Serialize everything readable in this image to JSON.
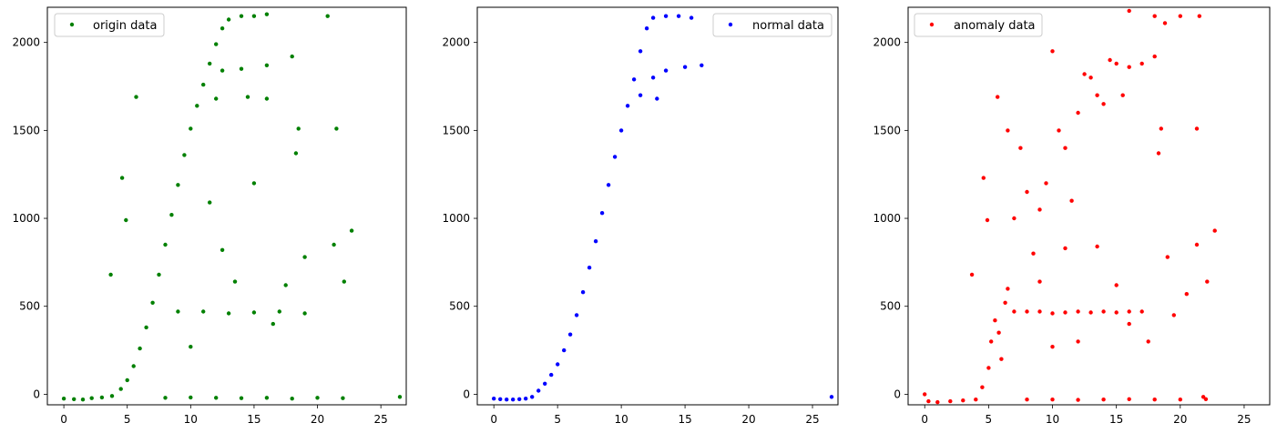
{
  "chart_data": [
    {
      "type": "scatter",
      "title": "",
      "xlabel": "",
      "ylabel": "",
      "xlim": [
        -1.3,
        27.0
      ],
      "ylim": [
        -60,
        2200
      ],
      "xticks": [
        0,
        5,
        10,
        15,
        20,
        25
      ],
      "yticks": [
        0,
        500,
        1000,
        1500,
        2000
      ],
      "grid": false,
      "legend_position": "top-left",
      "series": [
        {
          "name": "origin data",
          "color": "#008000",
          "points": [
            [
              0.0,
              -25
            ],
            [
              0.8,
              -28
            ],
            [
              1.5,
              -30
            ],
            [
              2.2,
              -22
            ],
            [
              3.0,
              -18
            ],
            [
              3.8,
              -10
            ],
            [
              4.5,
              30
            ],
            [
              5.0,
              80
            ],
            [
              5.5,
              160
            ],
            [
              6.0,
              260
            ],
            [
              6.5,
              380
            ],
            [
              7.0,
              520
            ],
            [
              7.5,
              680
            ],
            [
              8.0,
              850
            ],
            [
              8.5,
              1020
            ],
            [
              9.0,
              1190
            ],
            [
              9.5,
              1360
            ],
            [
              10.0,
              1510
            ],
            [
              10.5,
              1640
            ],
            [
              11.0,
              1760
            ],
            [
              11.5,
              1880
            ],
            [
              12.0,
              1990
            ],
            [
              12.5,
              2080
            ],
            [
              13.0,
              2130
            ],
            [
              14.0,
              2150
            ],
            [
              15.0,
              2150
            ],
            [
              16.0,
              2160
            ],
            [
              12.5,
              1840
            ],
            [
              14.0,
              1850
            ],
            [
              16.0,
              1870
            ],
            [
              18.0,
              1920
            ],
            [
              12.0,
              1680
            ],
            [
              14.5,
              1690
            ],
            [
              16.0,
              1680
            ],
            [
              9.0,
              470
            ],
            [
              11.0,
              470
            ],
            [
              13.0,
              460
            ],
            [
              15.0,
              465
            ],
            [
              17.0,
              470
            ],
            [
              19.0,
              460
            ],
            [
              8.0,
              -20
            ],
            [
              10.0,
              -18
            ],
            [
              12.0,
              -20
            ],
            [
              14.0,
              -22
            ],
            [
              16.0,
              -20
            ],
            [
              18.0,
              -25
            ],
            [
              20.0,
              -20
            ],
            [
              22.0,
              -22
            ],
            [
              26.5,
              -15
            ],
            [
              4.6,
              1230
            ],
            [
              5.7,
              1690
            ],
            [
              3.7,
              680
            ],
            [
              4.9,
              990
            ],
            [
              21.5,
              1510
            ],
            [
              22.7,
              930
            ],
            [
              22.1,
              640
            ],
            [
              21.3,
              850
            ],
            [
              20.8,
              2150
            ],
            [
              18.5,
              1510
            ],
            [
              18.3,
              1370
            ],
            [
              19.0,
              780
            ],
            [
              11.5,
              1090
            ],
            [
              12.5,
              820
            ],
            [
              13.5,
              640
            ],
            [
              15.0,
              1200
            ],
            [
              16.5,
              400
            ],
            [
              17.5,
              620
            ],
            [
              10.0,
              270
            ]
          ]
        },
        {
          "name": "normal data",
          "color": "#0000ff",
          "points": [
            [
              0.0,
              -25
            ],
            [
              0.5,
              -28
            ],
            [
              1.0,
              -30
            ],
            [
              1.5,
              -30
            ],
            [
              2.0,
              -28
            ],
            [
              2.5,
              -25
            ],
            [
              3.0,
              -15
            ],
            [
              3.5,
              20
            ],
            [
              4.0,
              60
            ],
            [
              4.5,
              110
            ],
            [
              5.0,
              170
            ],
            [
              5.5,
              250
            ],
            [
              6.0,
              340
            ],
            [
              6.5,
              450
            ],
            [
              7.0,
              580
            ],
            [
              7.5,
              720
            ],
            [
              8.0,
              870
            ],
            [
              8.5,
              1030
            ],
            [
              9.0,
              1190
            ],
            [
              9.5,
              1350
            ],
            [
              10.0,
              1500
            ],
            [
              10.5,
              1640
            ],
            [
              11.0,
              1790
            ],
            [
              11.5,
              1950
            ],
            [
              12.0,
              2080
            ],
            [
              12.5,
              2140
            ],
            [
              13.5,
              2150
            ],
            [
              14.5,
              2150
            ],
            [
              15.5,
              2140
            ],
            [
              12.5,
              1800
            ],
            [
              13.5,
              1840
            ],
            [
              15.0,
              1860
            ],
            [
              16.3,
              1870
            ],
            [
              11.5,
              1700
            ],
            [
              12.8,
              1680
            ],
            [
              26.5,
              -15
            ]
          ]
        },
        {
          "name": "anomaly data",
          "color": "#ff0000",
          "points": [
            [
              0.0,
              0
            ],
            [
              0.3,
              -40
            ],
            [
              1.0,
              -45
            ],
            [
              2.0,
              -40
            ],
            [
              3.0,
              -35
            ],
            [
              4.0,
              -30
            ],
            [
              4.5,
              40
            ],
            [
              5.0,
              150
            ],
            [
              5.2,
              300
            ],
            [
              5.5,
              420
            ],
            [
              5.8,
              350
            ],
            [
              6.0,
              200
            ],
            [
              6.3,
              520
            ],
            [
              6.5,
              600
            ],
            [
              7.0,
              470
            ],
            [
              8.0,
              470
            ],
            [
              9.0,
              470
            ],
            [
              10.0,
              460
            ],
            [
              11.0,
              465
            ],
            [
              12.0,
              470
            ],
            [
              13.0,
              465
            ],
            [
              14.0,
              470
            ],
            [
              15.0,
              465
            ],
            [
              16.0,
              470
            ],
            [
              17.0,
              470
            ],
            [
              8.0,
              -30
            ],
            [
              10.0,
              -30
            ],
            [
              12.0,
              -32
            ],
            [
              14.0,
              -30
            ],
            [
              16.0,
              -28
            ],
            [
              18.0,
              -30
            ],
            [
              20.0,
              -30
            ],
            [
              22.0,
              -28
            ],
            [
              21.8,
              -15
            ],
            [
              4.6,
              1230
            ],
            [
              4.9,
              990
            ],
            [
              5.7,
              1690
            ],
            [
              3.7,
              680
            ],
            [
              6.5,
              1500
            ],
            [
              7.0,
              1000
            ],
            [
              7.5,
              1400
            ],
            [
              8.0,
              1150
            ],
            [
              8.5,
              800
            ],
            [
              9.0,
              1050
            ],
            [
              9.5,
              1200
            ],
            [
              10.0,
              1950
            ],
            [
              10.5,
              1500
            ],
            [
              11.0,
              1400
            ],
            [
              11.5,
              1100
            ],
            [
              12.0,
              1600
            ],
            [
              12.5,
              1820
            ],
            [
              13.0,
              1800
            ],
            [
              13.5,
              1700
            ],
            [
              14.0,
              1650
            ],
            [
              14.5,
              1900
            ],
            [
              15.0,
              1880
            ],
            [
              15.5,
              1700
            ],
            [
              16.0,
              1860
            ],
            [
              17.0,
              1880
            ],
            [
              18.0,
              1920
            ],
            [
              16.0,
              2180
            ],
            [
              18.0,
              2150
            ],
            [
              18.8,
              2110
            ],
            [
              20.0,
              2150
            ],
            [
              21.5,
              2150
            ],
            [
              18.5,
              1510
            ],
            [
              18.3,
              1370
            ],
            [
              21.3,
              1510
            ],
            [
              22.7,
              930
            ],
            [
              21.3,
              850
            ],
            [
              19.0,
              780
            ],
            [
              22.1,
              640
            ],
            [
              20.5,
              570
            ],
            [
              10.0,
              270
            ],
            [
              12.0,
              300
            ],
            [
              9.0,
              640
            ],
            [
              11.0,
              830
            ],
            [
              13.5,
              840
            ],
            [
              15.0,
              620
            ],
            [
              16.0,
              400
            ],
            [
              17.5,
              300
            ],
            [
              19.5,
              450
            ]
          ]
        }
      ]
    }
  ]
}
